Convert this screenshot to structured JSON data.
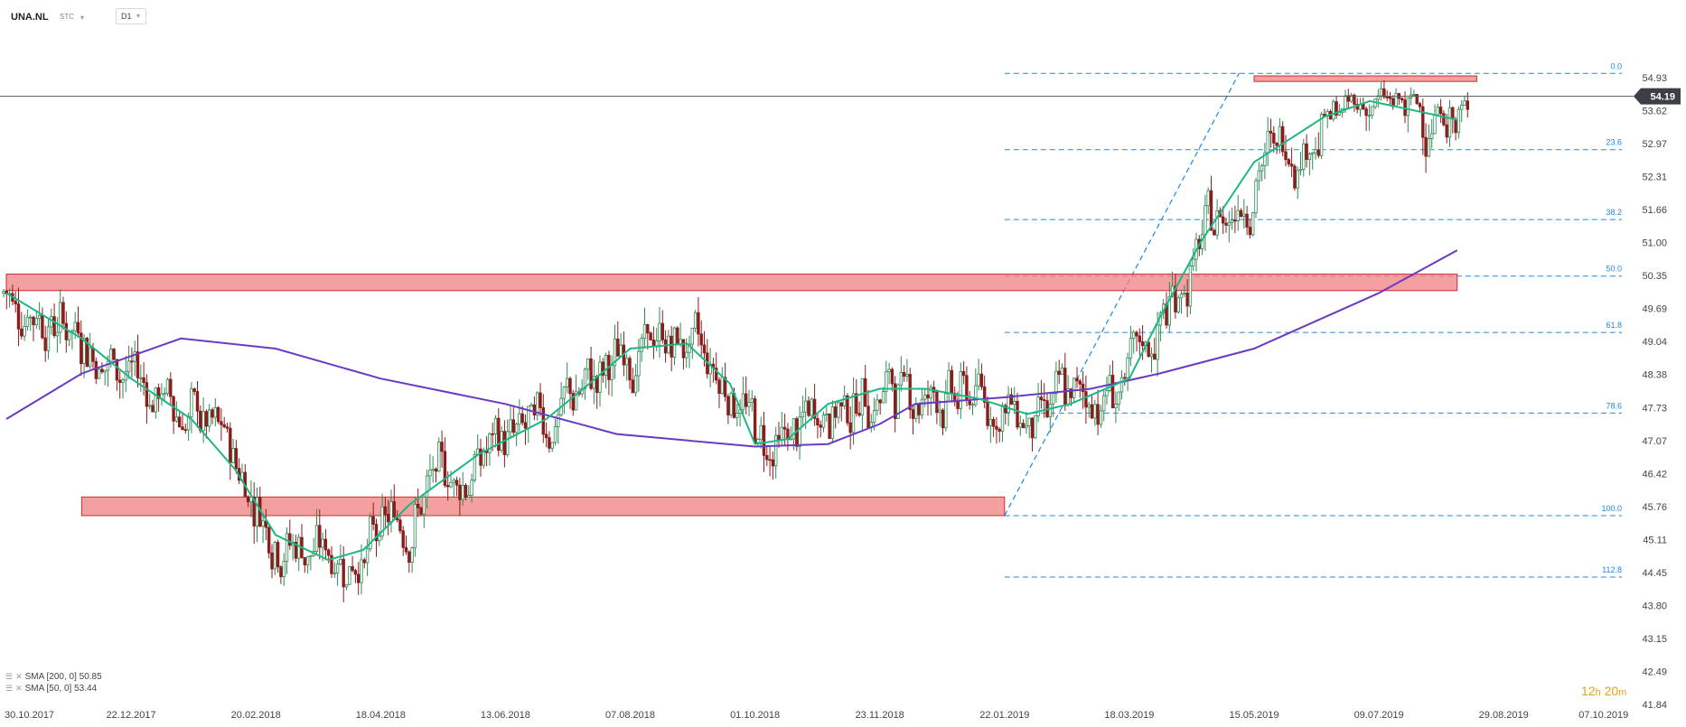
{
  "header": {
    "symbol": "UNA.NL",
    "type_label": "STC",
    "timeframe": "D1"
  },
  "legend": [
    {
      "label": "SMA [200, 0] 50.85"
    },
    {
      "label": "SMA [50, 0] 53.44"
    }
  ],
  "timer": {
    "hours": "12",
    "h_unit": "h",
    "minutes": "20",
    "m_unit": "m"
  },
  "colors": {
    "up": "#2f8a55",
    "down": "#8b1d1d",
    "sma50": "#1cb784",
    "sma200": "#6a3ac1",
    "fib": "#1e88e5",
    "zone_fill": "#f08080",
    "zone_stroke": "#c83030",
    "price_tag": "#3c4046"
  },
  "chart_data": {
    "type": "candlestick",
    "symbol": "UNA.NL",
    "interval": "D1",
    "last_price": 54.19,
    "y_ticks": [
      54.93,
      53.62,
      52.97,
      52.31,
      51.66,
      51.0,
      50.35,
      49.69,
      49.04,
      48.38,
      47.73,
      47.07,
      46.42,
      45.76,
      45.11,
      44.45,
      43.8,
      43.15,
      42.49,
      41.84
    ],
    "x_ticks": [
      "30.10.2017",
      "22.12.2017",
      "20.02.2018",
      "18.04.2018",
      "13.06.2018",
      "07.08.2018",
      "01.10.2018",
      "23.11.2018",
      "22.01.2019",
      "18.03.2019",
      "15.05.2019",
      "09.07.2019",
      "29.08.2019",
      "07.10.2019"
    ],
    "ylim": [
      41.6,
      55.6
    ],
    "fibonacci": {
      "high": 55.1,
      "low": 45.58,
      "start": "22.01.2019",
      "end": "08.05.2019",
      "levels": [
        {
          "label": "0.0",
          "value": 55.1
        },
        {
          "label": "23.6",
          "value": 52.85
        },
        {
          "label": "38.2",
          "value": 51.46
        },
        {
          "label": "50.0",
          "value": 50.34
        },
        {
          "label": "61.8",
          "value": 49.22
        },
        {
          "label": "78.6",
          "value": 47.62
        },
        {
          "label": "100.0",
          "value": 45.58
        },
        {
          "label": "112.8",
          "value": 44.36
        }
      ]
    },
    "zones": [
      {
        "from": "30.10.2017",
        "to": "10.08.2019",
        "low": 50.05,
        "high": 50.38
      },
      {
        "from": "01.12.2017",
        "to": "22.01.2019",
        "low": 45.58,
        "high": 45.95
      },
      {
        "from": "15.05.2019",
        "to": "18.08.2019",
        "low": 54.78,
        "high": 55.0
      }
    ],
    "sma200": {
      "name": "SMA [200, 0]",
      "last": 50.85,
      "points": [
        [
          "30.10.2017",
          47.5
        ],
        [
          "01.12.2017",
          48.4
        ],
        [
          "15.01.2018",
          49.1
        ],
        [
          "01.03.2018",
          48.9
        ],
        [
          "18.04.2018",
          48.3
        ],
        [
          "13.06.2018",
          47.8
        ],
        [
          "01.08.2018",
          47.2
        ],
        [
          "01.10.2018",
          46.95
        ],
        [
          "01.11.2018",
          47.0
        ],
        [
          "23.11.2018",
          47.4
        ],
        [
          "10.12.2018",
          47.8
        ],
        [
          "22.01.2019",
          47.93
        ],
        [
          "01.03.2019",
          48.1
        ],
        [
          "01.04.2019",
          48.4
        ],
        [
          "15.05.2019",
          48.9
        ],
        [
          "09.07.2019",
          50.0
        ],
        [
          "10.08.2019",
          50.85
        ]
      ]
    },
    "sma50": {
      "name": "SMA [50, 0]",
      "last": 53.44,
      "points": [
        [
          "30.10.2017",
          50.0
        ],
        [
          "01.12.2017",
          49.1
        ],
        [
          "22.12.2017",
          48.3
        ],
        [
          "20.01.2018",
          47.5
        ],
        [
          "10.02.2018",
          46.5
        ],
        [
          "01.03.2018",
          45.2
        ],
        [
          "25.03.2018",
          44.7
        ],
        [
          "10.04.2018",
          44.9
        ],
        [
          "01.05.2018",
          45.8
        ],
        [
          "01.06.2018",
          46.8
        ],
        [
          "01.07.2018",
          47.5
        ],
        [
          "20.07.2018",
          48.2
        ],
        [
          "07.08.2018",
          48.9
        ],
        [
          "01.09.2018",
          49.0
        ],
        [
          "20.09.2018",
          48.2
        ],
        [
          "01.10.2018",
          47.0
        ],
        [
          "15.10.2018",
          47.1
        ],
        [
          "01.11.2018",
          47.8
        ],
        [
          "23.11.2018",
          48.1
        ],
        [
          "15.12.2018",
          48.1
        ],
        [
          "10.01.2019",
          47.9
        ],
        [
          "01.02.2019",
          47.6
        ],
        [
          "20.02.2019",
          47.8
        ],
        [
          "18.03.2019",
          48.3
        ],
        [
          "01.04.2019",
          49.5
        ],
        [
          "20.04.2019",
          51.0
        ],
        [
          "15.05.2019",
          52.6
        ],
        [
          "15.06.2019",
          53.5
        ],
        [
          "05.07.2019",
          54.0
        ],
        [
          "20.07.2019",
          53.7
        ],
        [
          "10.08.2019",
          53.44
        ]
      ]
    }
  }
}
